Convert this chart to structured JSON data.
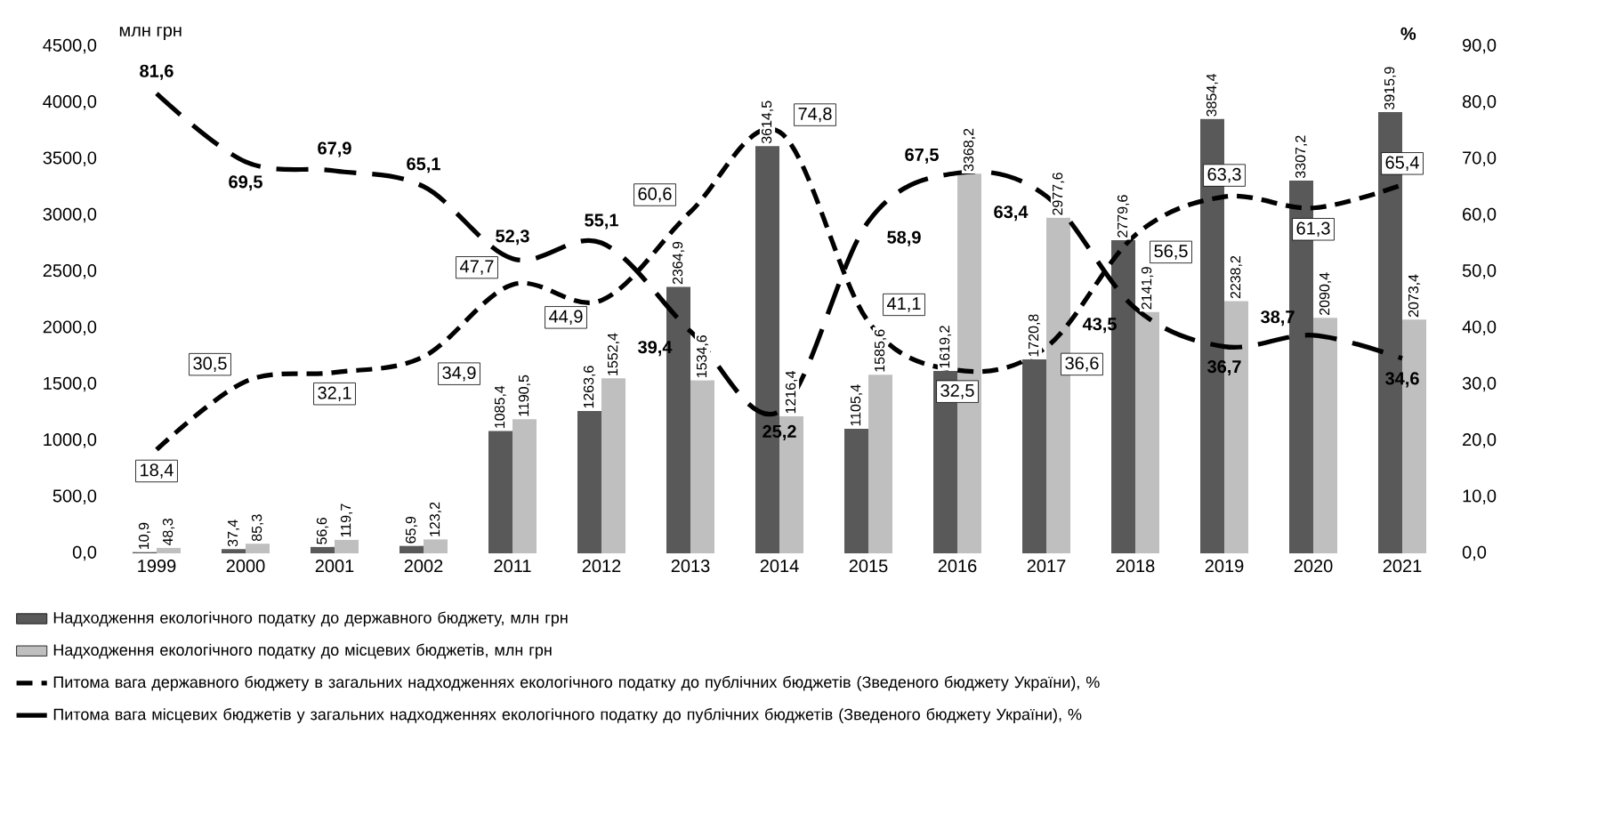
{
  "chart_data": {
    "type": "bar",
    "ylabel": "млн грн",
    "y2label": "%",
    "categories": [
      "1999",
      "2000",
      "2001",
      "2002",
      "2011",
      "2012",
      "2013",
      "2014",
      "2015",
      "2016",
      "2017",
      "2018",
      "2019",
      "2020",
      "2021"
    ],
    "ylim": [
      0,
      4500
    ],
    "yticks": [
      {
        "value": 0,
        "label": "0,0"
      },
      {
        "value": 500,
        "label": "500,0"
      },
      {
        "value": 1000,
        "label": "1000,0"
      },
      {
        "value": 1500,
        "label": "1500,0"
      },
      {
        "value": 2000,
        "label": "2000,0"
      },
      {
        "value": 2500,
        "label": "2500,0"
      },
      {
        "value": 3000,
        "label": "3000,0"
      },
      {
        "value": 3500,
        "label": "3500,0"
      },
      {
        "value": 4000,
        "label": "4000,0"
      },
      {
        "value": 4500,
        "label": "4500,0"
      }
    ],
    "y2lim": [
      0,
      90
    ],
    "y2ticks": [
      {
        "value": 0,
        "label": "0,0"
      },
      {
        "value": 10,
        "label": "10,0"
      },
      {
        "value": 20,
        "label": "20,0"
      },
      {
        "value": 30,
        "label": "30,0"
      },
      {
        "value": 40,
        "label": "40,0"
      },
      {
        "value": 50,
        "label": "50,0"
      },
      {
        "value": 60,
        "label": "60,0"
      },
      {
        "value": 70,
        "label": "70,0"
      },
      {
        "value": 80,
        "label": "80,0"
      },
      {
        "value": 90,
        "label": "90,0"
      }
    ],
    "legend": "bottom",
    "series": [
      {
        "name": "Надходження екологічного податку до державного бюджету, млн грн",
        "color": "#595959",
        "values": [
          10.9,
          37.4,
          56.6,
          65.9,
          1085.4,
          1263.6,
          2364.9,
          3614.5,
          1105.4,
          1619.2,
          1720.8,
          2779.6,
          3854.4,
          3307.2,
          3915.9
        ],
        "value_labels": [
          "10,9",
          "37,4",
          "56,6",
          "65,9",
          "1085,4",
          "1263,6",
          "2364,9",
          "3614,5",
          "1105,4",
          "1619,2",
          "1720,8",
          "2779,6",
          "3854,4",
          "3307,2",
          "3915,9"
        ]
      },
      {
        "name": "Надходження екологічного податку до місцевих бюджетів, млн грн",
        "color": "#bfbfbf",
        "values": [
          48.3,
          85.3,
          119.7,
          123.2,
          1190.5,
          1552.4,
          1534.6,
          1216.4,
          1585.6,
          3368.2,
          2977.6,
          2141.9,
          2238.2,
          2090.4,
          2073.4
        ],
        "value_labels": [
          "48,3",
          "85,3",
          "119,7",
          "123,2",
          "1190,5",
          "1552,4",
          "1534,6",
          "1216,4",
          "1585,6",
          "3368,2",
          "2977,6",
          "2141,9",
          "2238,2",
          "2090,4",
          "2073,4"
        ]
      },
      {
        "name": "Питома вага державного бюджету в загальних надходженнях екологічного податку до публічних бюджетів (Зведеного бюджету України), %",
        "type": "line",
        "axis": "y2",
        "color": "#000000",
        "line_style": "dashed",
        "marker": "none",
        "values": [
          18.4,
          30.5,
          32.1,
          34.9,
          47.7,
          44.9,
          60.6,
          74.8,
          41.1,
          32.5,
          36.6,
          56.5,
          63.3,
          61.3,
          65.4
        ],
        "value_labels": [
          "18,4",
          "30,5",
          "32,1",
          "34,9",
          "47,7",
          "44,9",
          "60,6",
          "74,8",
          "41,1",
          "32,5",
          "36,6",
          "56,5",
          "63,3",
          "61,3",
          "65,4"
        ]
      },
      {
        "name": "Питома вага місцевих бюджетів у загальних надходженнях екологічного податку до публічних бюджетів (Зведеного бюджету України), %",
        "type": "line",
        "axis": "y2",
        "color": "#000000",
        "line_style": "dashed",
        "marker": "none",
        "values": [
          81.6,
          69.5,
          67.9,
          65.1,
          52.3,
          55.1,
          39.4,
          25.2,
          58.9,
          67.5,
          63.4,
          43.5,
          36.7,
          38.7,
          34.6
        ],
        "value_labels": [
          "81,6",
          "69,5",
          "67,9",
          "65,1",
          "52,3",
          "55,1",
          "39,4",
          "25,2",
          "58,9",
          "67,5",
          "63,4",
          "43,5",
          "36,7",
          "38,7",
          "34,6"
        ]
      }
    ]
  }
}
